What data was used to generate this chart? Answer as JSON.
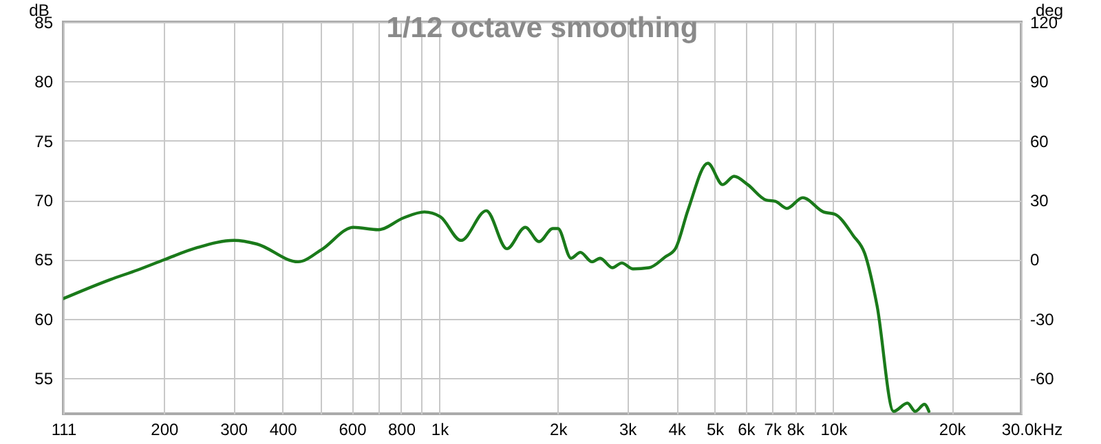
{
  "chart_data": {
    "type": "line",
    "title": "1/12 octave smoothing",
    "ylabel": "dB",
    "y2label": "deg",
    "x": [
      111,
      146,
      171,
      201,
      243,
      301,
      344,
      438,
      501,
      605,
      700,
      811,
      916,
      1006,
      1135,
      1316,
      1484,
      1653,
      1791,
      1941,
      2000,
      2160,
      2281,
      2440,
      2560,
      2750,
      2905,
      3105,
      3408,
      3741,
      3974,
      4282,
      4804,
      5240,
      5600,
      6067,
      6758,
      7130,
      7626,
      8368,
      9446,
      10100,
      11245,
      12020,
      12920,
      14230,
      15430,
      16150,
      17040,
      17500
    ],
    "series": [
      {
        "color": "#1a7a1a",
        "values": [
          61.7,
          63.3,
          64.1,
          65.0,
          66.0,
          66.6,
          66.3,
          64.8,
          65.8,
          67.7,
          67.5,
          68.5,
          69.0,
          68.6,
          66.6,
          69.1,
          65.9,
          67.7,
          66.5,
          67.6,
          67.6,
          65.1,
          65.6,
          64.8,
          65.1,
          64.3,
          64.7,
          64.2,
          64.3,
          65.2,
          65.9,
          69.2,
          73.1,
          71.3,
          72.0,
          71.3,
          70.0,
          69.9,
          69.3,
          70.2,
          69.0,
          68.8,
          67.0,
          65.5,
          61.1,
          52.2,
          52.9,
          52.2,
          52.8,
          52.2
        ]
      }
    ],
    "log": "x",
    "grid": true,
    "xlim": [
      111,
      30000
    ],
    "xticks": [
      111,
      200,
      300,
      400,
      {
        "value": 500,
        "label": null
      },
      600,
      {
        "value": 700,
        "label": null
      },
      800,
      {
        "value": 900,
        "label": null
      },
      {
        "value": 1000,
        "label": "1k"
      },
      {
        "value": 2000,
        "label": "2k"
      },
      {
        "value": 3000,
        "label": "3k"
      },
      {
        "value": 4000,
        "label": "4k"
      },
      {
        "value": 5000,
        "label": "5k"
      },
      {
        "value": 6000,
        "label": "6k"
      },
      {
        "value": 7000,
        "label": "7k"
      },
      {
        "value": 8000,
        "label": "8k"
      },
      {
        "value": 9000,
        "label": null
      },
      {
        "value": 10000,
        "label": "10k"
      },
      {
        "value": 20000,
        "label": "20k"
      },
      {
        "value": 30000,
        "label": "30.0k"
      }
    ],
    "xlabel": "Hz",
    "ylim": [
      52,
      85
    ],
    "yticks": [
      55,
      60,
      65,
      70,
      75,
      80,
      85
    ],
    "y2lim": [
      -78,
      120
    ],
    "y2ticks": [
      -60,
      -30,
      0,
      30,
      60,
      90,
      120
    ]
  }
}
